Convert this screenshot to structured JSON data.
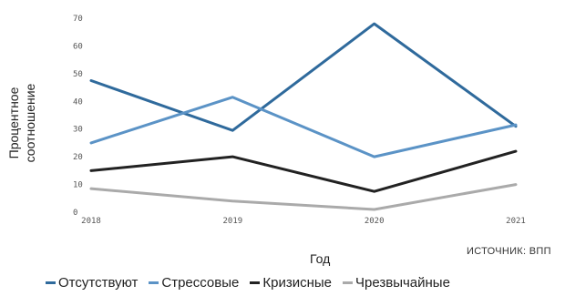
{
  "chart_data": {
    "type": "line",
    "x": [
      "2018",
      "2019",
      "2020",
      "2021"
    ],
    "xlabel": "Год",
    "ylabel_lines": [
      "Процентное",
      "соотношение"
    ],
    "ylim": [
      0,
      70
    ],
    "yticks": [
      "0",
      "10",
      "20",
      "30",
      "40",
      "50",
      "60",
      "70"
    ],
    "grid": false,
    "legend_position": "bottom",
    "series": [
      {
        "name": "Отсутствуют",
        "color": "#2f6a9c",
        "values": [
          47.5,
          29.5,
          68,
          31
        ]
      },
      {
        "name": "Стрессовые",
        "color": "#5b93c6",
        "values": [
          25,
          41.5,
          20,
          31.5
        ]
      },
      {
        "name": "Кризисные",
        "color": "#222222",
        "values": [
          15,
          20,
          7.5,
          22
        ]
      },
      {
        "name": "Чрезвычайные",
        "color": "#aaaaaa",
        "values": [
          8.5,
          4,
          1,
          10
        ]
      }
    ],
    "source": "ИСТОЧНИК: ВПП"
  }
}
